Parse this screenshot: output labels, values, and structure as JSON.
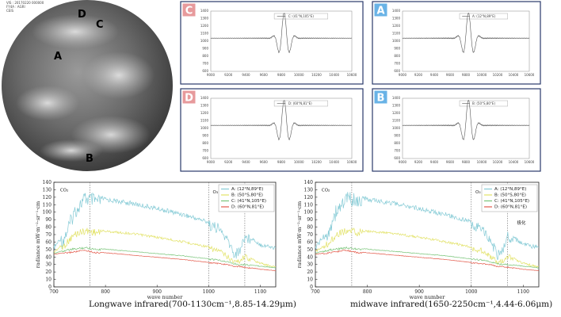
{
  "globe": {
    "header_lines": [
      "VIS : 20170220 000000",
      "FY4A : AGRI",
      "CEIS"
    ],
    "labels": [
      {
        "text": "D",
        "color": "#e48b84"
      },
      {
        "text": "C",
        "color": "#e48b84"
      },
      {
        "text": "A",
        "color": "#8f9ae4"
      },
      {
        "text": "B",
        "color": "#e8e28e"
      }
    ]
  },
  "interferograms": [
    {
      "badge": "C",
      "badge_color": "#e79a9c",
      "legend": "C: (41°N,105°E)",
      "xticks": [
        "9000",
        "9200",
        "9400",
        "9600",
        "9800",
        "10000",
        "10200",
        "10400",
        "10600"
      ],
      "yticks": [
        "1400",
        "1300",
        "1200",
        "1100",
        "1000",
        "900",
        "800",
        "700",
        "600"
      ]
    },
    {
      "badge": "A",
      "badge_color": "#69b3e6",
      "legend": "A: (12°N,89°E)",
      "xticks": [
        "9000",
        "9200",
        "9400",
        "9600",
        "9800",
        "10000",
        "10200",
        "10400",
        "10600"
      ],
      "yticks": [
        "1400",
        "1300",
        "1200",
        "1100",
        "1000",
        "900",
        "800",
        "700",
        "600"
      ]
    },
    {
      "badge": "D",
      "badge_color": "#e79a9c",
      "legend": "D: (60°N,81°E)",
      "xticks": [
        "9000",
        "9200",
        "9400",
        "9600",
        "9800",
        "10000",
        "10200",
        "10400",
        "10600"
      ],
      "yticks": [
        "1400",
        "1300",
        "1200",
        "1100",
        "1000",
        "900",
        "800",
        "700",
        "600"
      ]
    },
    {
      "badge": "B",
      "badge_color": "#69b3e6",
      "legend": "B: (50°S,80°E)",
      "xticks": [
        "9000",
        "9200",
        "9400",
        "9600",
        "9800",
        "10000",
        "10200",
        "10400",
        "10600"
      ],
      "yticks": [
        "1400",
        "1300",
        "1200",
        "1100",
        "1000",
        "900",
        "800",
        "700",
        "600"
      ]
    }
  ],
  "chart_data": [
    {
      "type": "line",
      "caption": "Longwave infrared(700-1130cm⁻¹,8.85-14.29μm)",
      "xlabel": "wave number",
      "ylabel": "radiance mW·m⁻²·sr⁻¹·cm",
      "xlim": [
        700,
        1130
      ],
      "ylim": [
        0,
        140
      ],
      "xticks": [
        700,
        800,
        900,
        1000,
        1100
      ],
      "yticks": [
        0,
        10,
        20,
        30,
        40,
        50,
        60,
        70,
        80,
        90,
        100,
        110,
        120,
        130,
        140
      ],
      "annotations": [
        "CO₂",
        "O₃"
      ],
      "vlines": [
        770,
        1000,
        1070
      ],
      "legend_position": "top-right",
      "series": [
        {
          "name": "A: (12°N,89°E)",
          "color": "#86cbd6",
          "x": [
            700,
            720,
            740,
            760,
            780,
            800,
            850,
            900,
            950,
            1000,
            1020,
            1040,
            1050,
            1060,
            1070,
            1080,
            1100,
            1130
          ],
          "y": [
            55,
            75,
            110,
            128,
            125,
            120,
            115,
            108,
            100,
            90,
            85,
            65,
            50,
            55,
            75,
            70,
            60,
            55
          ]
        },
        {
          "name": "B: (50°S,80°E)",
          "color": "#e2e266",
          "x": [
            700,
            720,
            740,
            760,
            780,
            800,
            850,
            900,
            950,
            1000,
            1020,
            1040,
            1050,
            1060,
            1070,
            1080,
            1100,
            1130
          ],
          "y": [
            48,
            60,
            75,
            80,
            78,
            76,
            73,
            68,
            62,
            55,
            52,
            42,
            37,
            38,
            45,
            40,
            33,
            28
          ]
        },
        {
          "name": "C: (41°N,105°E)",
          "color": "#78c478",
          "x": [
            700,
            720,
            740,
            760,
            780,
            800,
            850,
            900,
            950,
            1000,
            1020,
            1040,
            1050,
            1060,
            1070,
            1080,
            1100,
            1130
          ],
          "y": [
            45,
            50,
            52,
            54,
            52,
            51,
            48,
            45,
            42,
            38,
            37,
            34,
            32,
            31,
            31,
            30,
            28,
            26
          ]
        },
        {
          "name": "D: (60°N,81°E)",
          "color": "#e35a4b",
          "x": [
            700,
            720,
            740,
            760,
            780,
            800,
            850,
            900,
            950,
            1000,
            1020,
            1040,
            1050,
            1060,
            1070,
            1080,
            1100,
            1130
          ],
          "y": [
            44,
            46,
            48,
            50,
            47,
            46,
            43,
            40,
            37,
            33,
            32,
            30,
            28,
            28,
            27,
            26,
            24,
            22
          ]
        }
      ]
    },
    {
      "type": "line",
      "caption": "midwave infrared(1650-2250cm⁻¹,4.44-6.06μm)",
      "xlabel": "wave number",
      "ylabel": "radiance mW·m⁻²·sr⁻¹·cm",
      "xlim": [
        700,
        1130
      ],
      "ylim": [
        0,
        140
      ],
      "xticks": [
        700,
        800,
        900,
        1000,
        1100
      ],
      "yticks": [
        0,
        10,
        20,
        30,
        40,
        50,
        60,
        70,
        80,
        90,
        100,
        110,
        120,
        130,
        140
      ],
      "annotations": [
        "CO₂",
        "O₃",
        "极化"
      ],
      "vlines": [
        770,
        1000,
        1070
      ],
      "legend_position": "top-right",
      "series": [
        {
          "name": "A: (12°N,89°E)",
          "color": "#86cbd6",
          "x": [
            700,
            720,
            740,
            760,
            780,
            800,
            850,
            900,
            950,
            1000,
            1020,
            1040,
            1050,
            1060,
            1070,
            1080,
            1100,
            1130
          ],
          "y": [
            55,
            75,
            110,
            128,
            125,
            120,
            115,
            108,
            100,
            90,
            85,
            65,
            50,
            55,
            75,
            70,
            60,
            55
          ]
        },
        {
          "name": "B: (50°S,80°E)",
          "color": "#e2e266",
          "x": [
            700,
            720,
            740,
            760,
            780,
            800,
            850,
            900,
            950,
            1000,
            1020,
            1040,
            1050,
            1060,
            1070,
            1080,
            1100,
            1130
          ],
          "y": [
            48,
            60,
            75,
            80,
            78,
            76,
            73,
            68,
            62,
            55,
            52,
            42,
            37,
            38,
            45,
            40,
            33,
            28
          ]
        },
        {
          "name": "C: (41°N,105°E)",
          "color": "#78c478",
          "x": [
            700,
            720,
            740,
            760,
            780,
            800,
            850,
            900,
            950,
            1000,
            1020,
            1040,
            1050,
            1060,
            1070,
            1080,
            1100,
            1130
          ],
          "y": [
            45,
            50,
            52,
            54,
            52,
            51,
            48,
            45,
            42,
            38,
            37,
            34,
            32,
            31,
            31,
            30,
            28,
            26
          ]
        },
        {
          "name": "D: (60°N,81°E)",
          "color": "#e35a4b",
          "x": [
            700,
            720,
            740,
            760,
            780,
            800,
            850,
            900,
            950,
            1000,
            1020,
            1040,
            1050,
            1060,
            1070,
            1080,
            1100,
            1130
          ],
          "y": [
            44,
            46,
            48,
            50,
            47,
            46,
            43,
            40,
            37,
            33,
            32,
            30,
            28,
            28,
            27,
            26,
            24,
            22
          ]
        }
      ]
    }
  ]
}
